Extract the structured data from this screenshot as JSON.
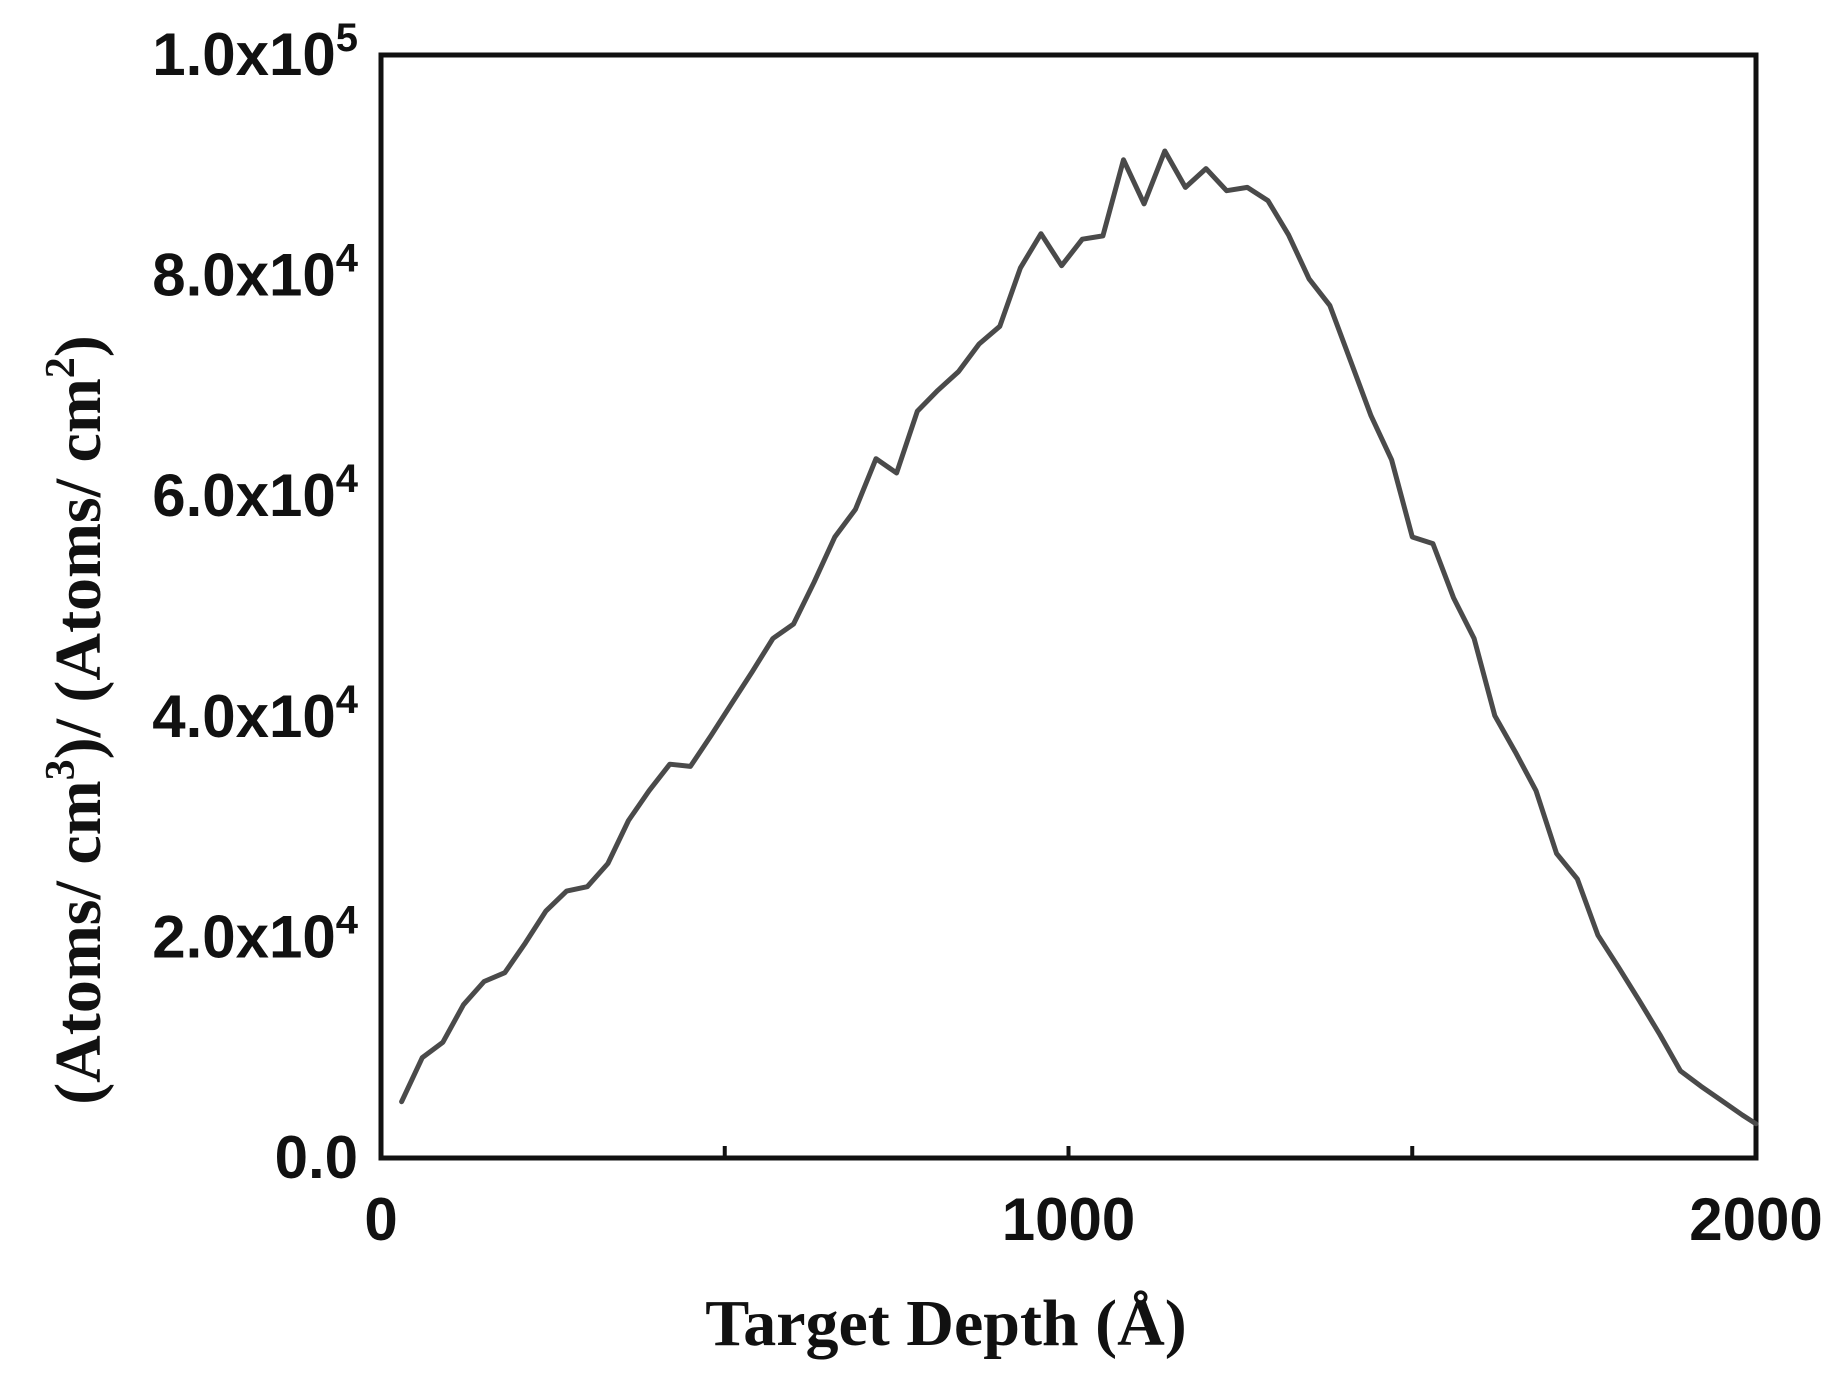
{
  "chart_data": {
    "type": "line",
    "title": "",
    "xlabel": "Target Depth (Å)",
    "ylabel": "(Atoms/ cm3)/ (Atoms/ cm2)",
    "ylabel_parts": {
      "open": "(Atoms/ cm",
      "sup1": "3",
      "mid": ")/ (Atoms/ cm",
      "sup2": "2",
      "close": ")"
    },
    "xlim": [
      0,
      2000
    ],
    "ylim": [
      0,
      100000
    ],
    "x_ticks": [
      0,
      500,
      1000,
      1500,
      2000
    ],
    "x_tick_labels": [
      "0",
      "",
      "1000",
      "",
      "2000"
    ],
    "y_ticks": [
      {
        "value": 0,
        "mantissa": "0.0",
        "times": "",
        "exp": ""
      },
      {
        "value": 20000,
        "mantissa": "2.0",
        "times": "x10",
        "exp": "4"
      },
      {
        "value": 40000,
        "mantissa": "4.0",
        "times": "x10",
        "exp": "4"
      },
      {
        "value": 60000,
        "mantissa": "6.0",
        "times": "x10",
        "exp": "4"
      },
      {
        "value": 80000,
        "mantissa": "8.0",
        "times": "x10",
        "exp": "4"
      },
      {
        "value": 100000,
        "mantissa": "1.0",
        "times": "x10",
        "exp": "5"
      }
    ],
    "grid": false,
    "line_color": "#4a4a4a",
    "series": [
      {
        "x": [
          30,
          60,
          90,
          120,
          150,
          180,
          210,
          240,
          270,
          300,
          330,
          360,
          390,
          420,
          450,
          480,
          510,
          540,
          570,
          600,
          630,
          660,
          690,
          720,
          750,
          780,
          810,
          840,
          870,
          900,
          930,
          960,
          990,
          1020,
          1050,
          1080,
          1110,
          1140,
          1170,
          1200,
          1230,
          1260,
          1290,
          1320,
          1350,
          1380,
          1410,
          1440,
          1470,
          1500,
          1530,
          1560,
          1590,
          1620,
          1650,
          1680,
          1710,
          1740,
          1770,
          1800,
          1830,
          1860,
          1890,
          1920,
          1950,
          1980,
          2000
        ],
        "y": [
          5100,
          9100,
          10500,
          13900,
          16000,
          16800,
          19500,
          22400,
          24200,
          24600,
          26700,
          30600,
          33300,
          35700,
          35500,
          38300,
          41200,
          44100,
          47100,
          48400,
          52200,
          56300,
          58800,
          63400,
          62100,
          67700,
          69600,
          71300,
          73800,
          75400,
          80700,
          83800,
          80900,
          83300,
          83600,
          90500,
          86500,
          91300,
          88000,
          89700,
          87700,
          88000,
          86800,
          83700,
          79700,
          77300,
          72300,
          67300,
          63300,
          56300,
          55700,
          50800,
          47100,
          40100,
          36800,
          33300,
          27600,
          25300,
          20200,
          17300,
          14300,
          11200,
          7900,
          6500,
          5200,
          3900,
          3100
        ]
      }
    ]
  }
}
